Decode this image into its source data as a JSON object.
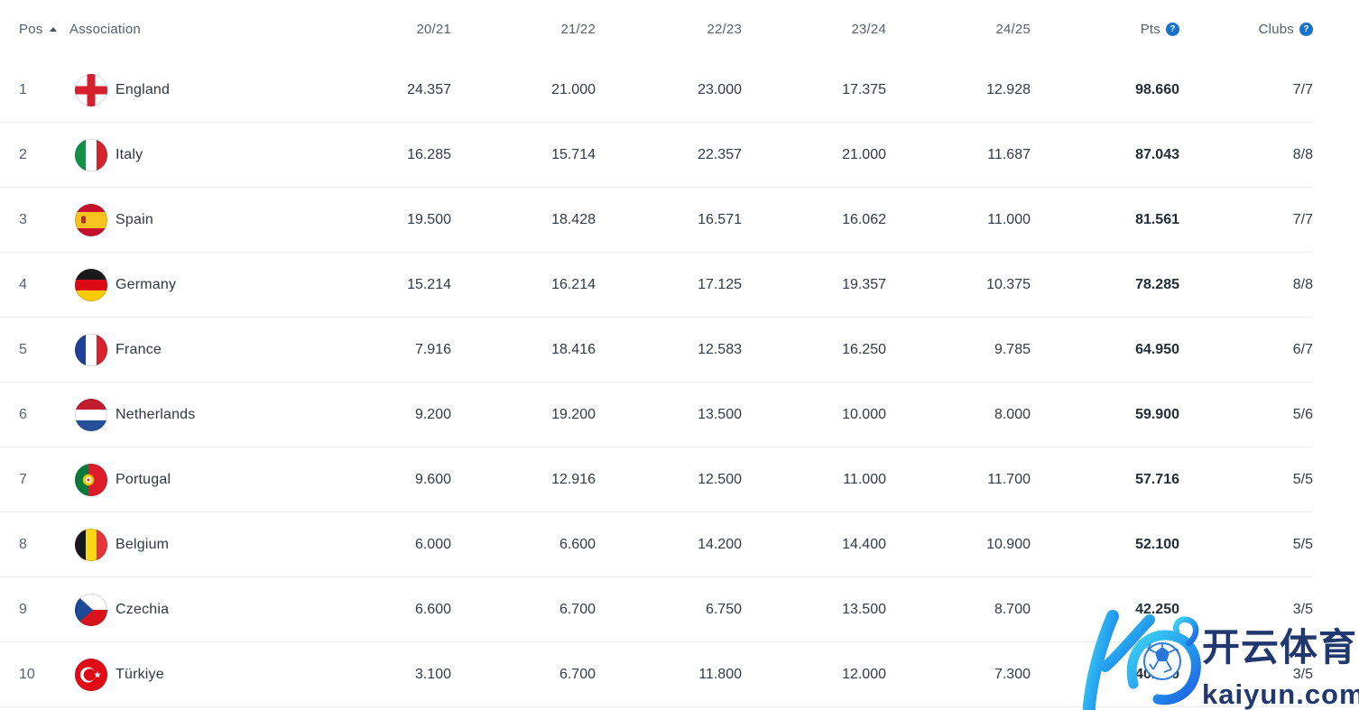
{
  "header": {
    "columns": [
      {
        "key": "pos",
        "label": "Pos",
        "sorted": "asc"
      },
      {
        "key": "assoc",
        "label": "Association"
      },
      {
        "key": "s2021",
        "label": "20/21"
      },
      {
        "key": "s2122",
        "label": "21/22"
      },
      {
        "key": "s2223",
        "label": "22/23"
      },
      {
        "key": "s2324",
        "label": "23/24"
      },
      {
        "key": "s2425",
        "label": "24/25"
      },
      {
        "key": "pts",
        "label": "Pts",
        "info": true
      },
      {
        "key": "clubs",
        "label": "Clubs",
        "info": true
      }
    ],
    "info_glyph": "?"
  },
  "rows": [
    {
      "pos": "1",
      "country": "England",
      "flag": "england",
      "s2021": "24.357",
      "s2122": "21.000",
      "s2223": "23.000",
      "s2324": "17.375",
      "s2425": "12.928",
      "pts": "98.660",
      "clubs": "7/7"
    },
    {
      "pos": "2",
      "country": "Italy",
      "flag": "italy",
      "s2021": "16.285",
      "s2122": "15.714",
      "s2223": "22.357",
      "s2324": "21.000",
      "s2425": "11.687",
      "pts": "87.043",
      "clubs": "8/8"
    },
    {
      "pos": "3",
      "country": "Spain",
      "flag": "spain",
      "s2021": "19.500",
      "s2122": "18.428",
      "s2223": "16.571",
      "s2324": "16.062",
      "s2425": "11.000",
      "pts": "81.561",
      "clubs": "7/7"
    },
    {
      "pos": "4",
      "country": "Germany",
      "flag": "germany",
      "s2021": "15.214",
      "s2122": "16.214",
      "s2223": "17.125",
      "s2324": "19.357",
      "s2425": "10.375",
      "pts": "78.285",
      "clubs": "8/8"
    },
    {
      "pos": "5",
      "country": "France",
      "flag": "france",
      "s2021": "7.916",
      "s2122": "18.416",
      "s2223": "12.583",
      "s2324": "16.250",
      "s2425": "9.785",
      "pts": "64.950",
      "clubs": "6/7"
    },
    {
      "pos": "6",
      "country": "Netherlands",
      "flag": "netherlands",
      "s2021": "9.200",
      "s2122": "19.200",
      "s2223": "13.500",
      "s2324": "10.000",
      "s2425": "8.000",
      "pts": "59.900",
      "clubs": "5/6"
    },
    {
      "pos": "7",
      "country": "Portugal",
      "flag": "portugal",
      "s2021": "9.600",
      "s2122": "12.916",
      "s2223": "12.500",
      "s2324": "11.000",
      "s2425": "11.700",
      "pts": "57.716",
      "clubs": "5/5"
    },
    {
      "pos": "8",
      "country": "Belgium",
      "flag": "belgium",
      "s2021": "6.000",
      "s2122": "6.600",
      "s2223": "14.200",
      "s2324": "14.400",
      "s2425": "10.900",
      "pts": "52.100",
      "clubs": "5/5"
    },
    {
      "pos": "9",
      "country": "Czechia",
      "flag": "czechia",
      "s2021": "6.600",
      "s2122": "6.700",
      "s2223": "6.750",
      "s2324": "13.500",
      "s2425": "8.700",
      "pts": "42.250",
      "clubs": "3/5"
    },
    {
      "pos": "10",
      "country": "Türkiye",
      "flag": "turkiye",
      "s2021": "3.100",
      "s2122": "6.700",
      "s2223": "11.800",
      "s2324": "12.000",
      "s2425": "7.300",
      "pts": "40.900",
      "clubs": "3/5"
    }
  ],
  "watermark": {
    "cn_text": "开云体育",
    "domain_text": "kaiyun.com"
  },
  "colors": {
    "info_icon_blue": "#1673c9",
    "row_separator": "#e8e9ec",
    "header_text": "#55606b",
    "value_text": "#303b46",
    "pts_bold_text": "#232e38",
    "watermark_text": "#21386e",
    "logo_gradient_start": "#3fd4f5",
    "logo_gradient_end": "#1b5de2"
  }
}
